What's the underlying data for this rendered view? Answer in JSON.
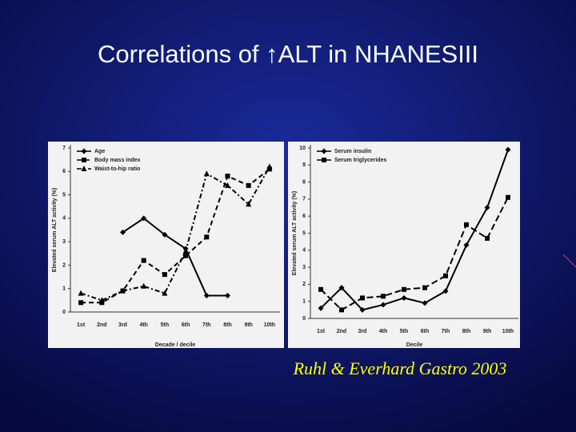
{
  "title": "Correlations of ↑ALT in NHANESIII",
  "citation": "Ruhl & Everhard Gastro 2003",
  "chart_data": [
    {
      "type": "line",
      "xlabel": "Decade / decile",
      "ylabel": "Elevated serum ALT activity (%)",
      "categories": [
        "1st",
        "2nd",
        "3rd",
        "4th",
        "5th",
        "6th",
        "7th",
        "8th",
        "9th",
        "10th"
      ],
      "ylim": [
        0,
        7
      ],
      "yticks": [
        0,
        1,
        2,
        3,
        4,
        5,
        6,
        7
      ],
      "legend": "upper left",
      "series": [
        {
          "name": "Age",
          "color": "#000000",
          "dash": "none",
          "marker": "diamond",
          "values": [
            null,
            null,
            3.4,
            4.0,
            3.3,
            2.7,
            0.7,
            0.7,
            null,
            null
          ]
        },
        {
          "name": "Body mass index",
          "color": "#000000",
          "dash": "6,4",
          "marker": "square",
          "values": [
            0.4,
            0.4,
            0.9,
            2.2,
            1.6,
            2.4,
            3.2,
            5.8,
            5.4,
            6.1
          ]
        },
        {
          "name": "Waist-to-hip ratio",
          "color": "#000000",
          "dash": "6,3,2,3",
          "marker": "triangle",
          "values": [
            0.8,
            0.5,
            0.9,
            1.1,
            0.8,
            2.6,
            5.9,
            5.4,
            4.6,
            6.2
          ]
        }
      ]
    },
    {
      "type": "line",
      "xlabel": "Decile",
      "ylabel": "Elevated serum ALT activity (%)",
      "categories": [
        "1st",
        "2nd",
        "3rd",
        "4th",
        "5th",
        "6th",
        "7th",
        "8th",
        "9th",
        "10th"
      ],
      "ylim": [
        0,
        10
      ],
      "yticks": [
        0,
        1,
        2,
        3,
        4,
        5,
        6,
        7,
        8,
        9,
        10
      ],
      "legend": "upper left",
      "series": [
        {
          "name": "Serum insulin",
          "color": "#000000",
          "dash": "none",
          "marker": "diamond",
          "values": [
            0.6,
            1.8,
            0.5,
            0.8,
            1.2,
            0.9,
            1.6,
            4.3,
            6.5,
            9.9
          ]
        },
        {
          "name": "Serum triglycerides",
          "color": "#000000",
          "dash": "8,4",
          "marker": "square",
          "values": [
            1.7,
            0.5,
            1.2,
            1.3,
            1.7,
            1.8,
            2.5,
            5.5,
            4.7,
            7.1
          ]
        }
      ]
    }
  ]
}
